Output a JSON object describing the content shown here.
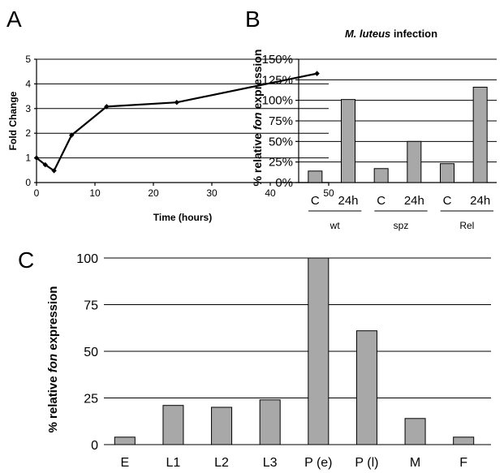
{
  "panels": {
    "a": "A",
    "b": "B",
    "c": "C"
  },
  "chart_data": [
    {
      "id": "A",
      "type": "line",
      "xlabel": "Time (hours)",
      "ylabel": "Fold Change",
      "xlim": [
        0,
        50
      ],
      "ylim": [
        0,
        5
      ],
      "xticks": [
        0,
        10,
        20,
        30,
        40,
        50
      ],
      "yticks": [
        0,
        1,
        2,
        3,
        4,
        5
      ],
      "grid": "horizontal",
      "x": [
        0,
        1.5,
        3,
        6,
        12,
        24,
        48
      ],
      "y": [
        1.0,
        0.72,
        0.48,
        1.92,
        3.08,
        3.25,
        4.42
      ]
    },
    {
      "id": "B",
      "type": "bar",
      "title_italic": "M. luteus",
      "title_rest": " infection",
      "ylabel_pre": "% relative ",
      "ylabel_italic": "fon",
      "ylabel_post": " expression",
      "ylim": [
        0,
        150
      ],
      "ytick_labels": [
        "0%",
        "25%",
        "50%",
        "75%",
        "100%",
        "125%",
        "150%"
      ],
      "yticks": [
        0,
        25,
        50,
        75,
        100,
        125,
        150
      ],
      "grid": "horizontal",
      "categories": [
        "C",
        "24h",
        "C",
        "24h",
        "C",
        "24h"
      ],
      "groups": [
        "wt",
        "spz",
        "Rel"
      ],
      "values": [
        14,
        101,
        17,
        50,
        23,
        116
      ]
    },
    {
      "id": "C",
      "type": "bar",
      "ylabel_pre": "% relative ",
      "ylabel_italic": "fon",
      "ylabel_post": "  expression",
      "ylim": [
        0,
        100
      ],
      "yticks": [
        0,
        25,
        50,
        75,
        100
      ],
      "ytick_labels": [
        "0",
        "25",
        "50",
        "75",
        "100"
      ],
      "grid": "horizontal",
      "categories": [
        "E",
        "L1",
        "L2",
        "L3",
        "P (e)",
        "P (l)",
        "M",
        "F"
      ],
      "values": [
        4,
        21,
        20,
        24,
        100,
        61,
        14,
        4
      ]
    }
  ]
}
